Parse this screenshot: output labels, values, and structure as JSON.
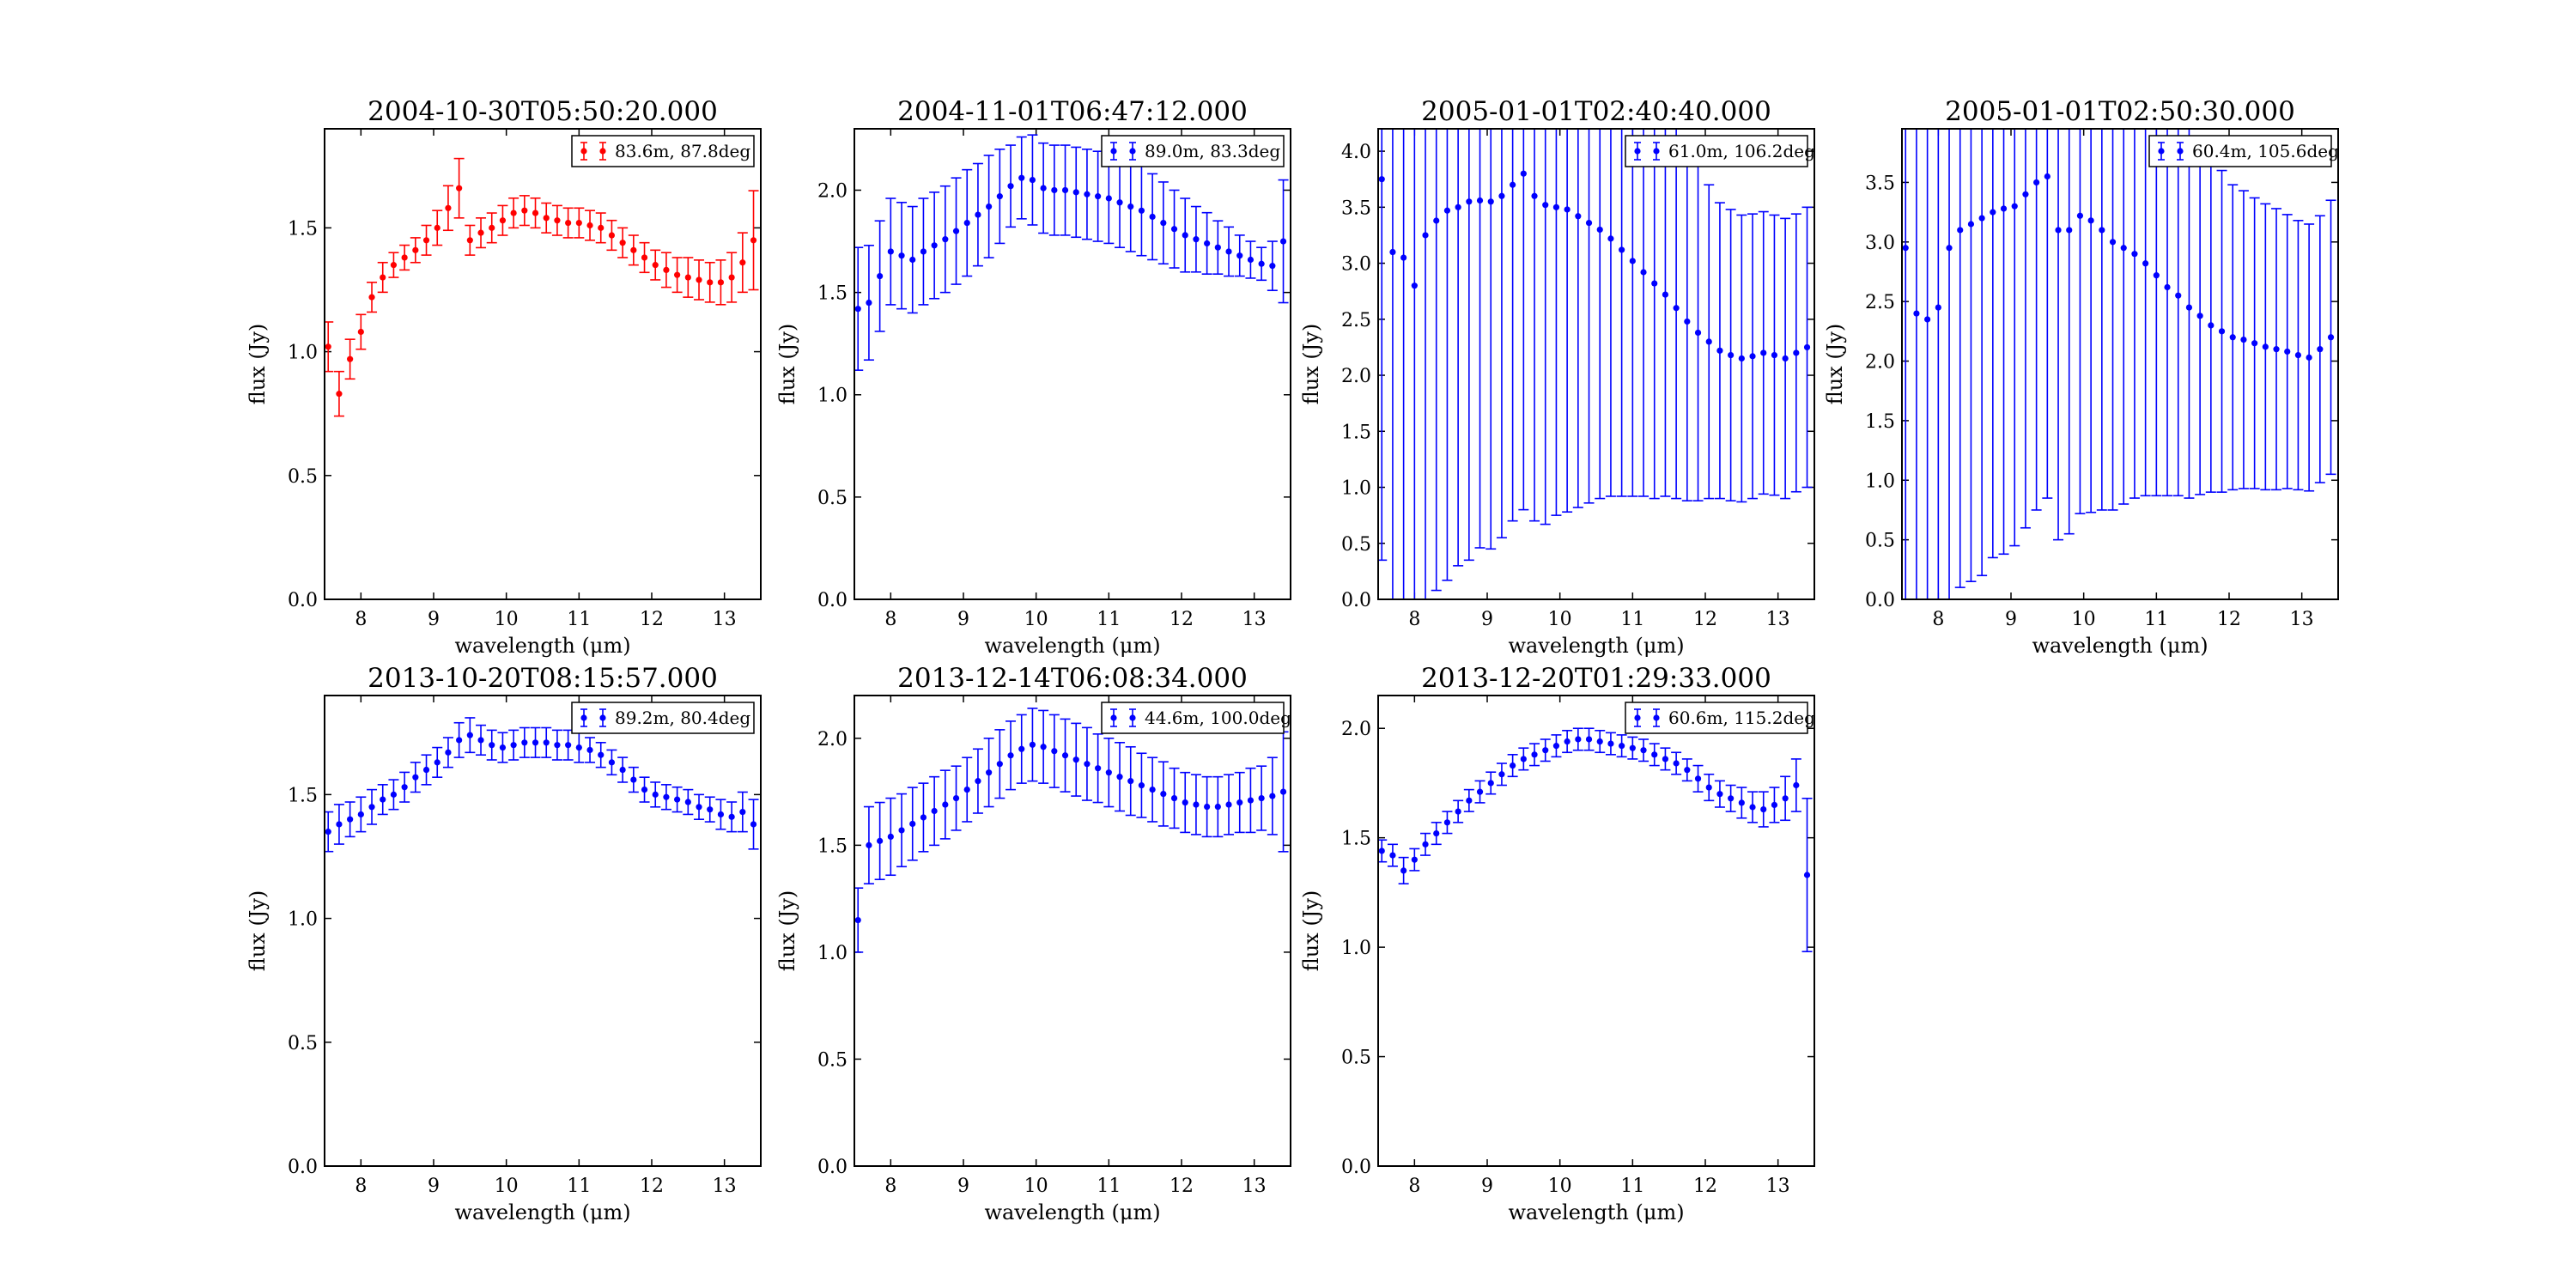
{
  "figure": {
    "background": "#ffffff"
  },
  "chart_data": [
    {
      "type": "scatter",
      "title": "2004-10-30T05:50:20.000",
      "xlabel": "wavelength (μm)",
      "ylabel": "flux (Jy)",
      "xlim": [
        7.5,
        13.5
      ],
      "ylim": [
        0,
        1.9
      ],
      "xticks": [
        8,
        9,
        10,
        11,
        12,
        13
      ],
      "yticks": [
        0.0,
        0.5,
        1.0,
        1.5
      ],
      "color": "#ff0000",
      "grid": false,
      "legend_position": "top-right",
      "series": [
        {
          "name": "83.6m, 87.8deg",
          "x": [
            7.55,
            7.7,
            7.85,
            8.0,
            8.15,
            8.3,
            8.45,
            8.6,
            8.75,
            8.9,
            9.05,
            9.2,
            9.35,
            9.5,
            9.65,
            9.8,
            9.95,
            10.1,
            10.25,
            10.4,
            10.55,
            10.7,
            10.85,
            11.0,
            11.15,
            11.3,
            11.45,
            11.6,
            11.75,
            11.9,
            12.05,
            12.2,
            12.35,
            12.5,
            12.65,
            12.8,
            12.95,
            13.1,
            13.25,
            13.4
          ],
          "y": [
            1.02,
            0.83,
            0.97,
            1.08,
            1.22,
            1.3,
            1.35,
            1.38,
            1.41,
            1.45,
            1.5,
            1.58,
            1.66,
            1.45,
            1.48,
            1.5,
            1.53,
            1.56,
            1.57,
            1.56,
            1.54,
            1.53,
            1.52,
            1.52,
            1.51,
            1.5,
            1.47,
            1.44,
            1.41,
            1.38,
            1.35,
            1.33,
            1.31,
            1.3,
            1.29,
            1.28,
            1.28,
            1.3,
            1.36,
            1.45
          ],
          "err": [
            0.1,
            0.09,
            0.08,
            0.07,
            0.06,
            0.06,
            0.05,
            0.05,
            0.05,
            0.06,
            0.07,
            0.09,
            0.12,
            0.06,
            0.06,
            0.06,
            0.06,
            0.06,
            0.06,
            0.06,
            0.06,
            0.06,
            0.06,
            0.06,
            0.06,
            0.06,
            0.06,
            0.06,
            0.06,
            0.06,
            0.06,
            0.07,
            0.07,
            0.08,
            0.08,
            0.08,
            0.09,
            0.1,
            0.12,
            0.2
          ]
        }
      ]
    },
    {
      "type": "scatter",
      "title": "2004-11-01T06:47:12.000",
      "xlabel": "wavelength (μm)",
      "ylabel": "flux (Jy)",
      "xlim": [
        7.5,
        13.5
      ],
      "ylim": [
        0,
        2.3
      ],
      "xticks": [
        8,
        9,
        10,
        11,
        12,
        13
      ],
      "yticks": [
        0.0,
        0.5,
        1.0,
        1.5,
        2.0
      ],
      "color": "#0000ff",
      "grid": false,
      "legend_position": "top-right",
      "series": [
        {
          "name": "89.0m, 83.3deg",
          "x": [
            7.55,
            7.7,
            7.85,
            8.0,
            8.15,
            8.3,
            8.45,
            8.6,
            8.75,
            8.9,
            9.05,
            9.2,
            9.35,
            9.5,
            9.65,
            9.8,
            9.95,
            10.1,
            10.25,
            10.4,
            10.55,
            10.7,
            10.85,
            11.0,
            11.15,
            11.3,
            11.45,
            11.6,
            11.75,
            11.9,
            12.05,
            12.2,
            12.35,
            12.5,
            12.65,
            12.8,
            12.95,
            13.1,
            13.25,
            13.4
          ],
          "y": [
            1.42,
            1.45,
            1.58,
            1.7,
            1.68,
            1.66,
            1.7,
            1.73,
            1.76,
            1.8,
            1.84,
            1.88,
            1.92,
            1.97,
            2.02,
            2.06,
            2.05,
            2.01,
            2.0,
            2.0,
            1.99,
            1.98,
            1.97,
            1.96,
            1.94,
            1.92,
            1.9,
            1.87,
            1.84,
            1.81,
            1.78,
            1.76,
            1.74,
            1.72,
            1.7,
            1.68,
            1.66,
            1.64,
            1.63,
            1.75
          ],
          "err": [
            0.3,
            0.28,
            0.27,
            0.26,
            0.26,
            0.26,
            0.26,
            0.26,
            0.26,
            0.26,
            0.26,
            0.25,
            0.25,
            0.23,
            0.2,
            0.2,
            0.22,
            0.22,
            0.22,
            0.22,
            0.22,
            0.22,
            0.22,
            0.22,
            0.22,
            0.22,
            0.22,
            0.21,
            0.2,
            0.19,
            0.18,
            0.16,
            0.15,
            0.13,
            0.12,
            0.1,
            0.09,
            0.08,
            0.12,
            0.3
          ]
        }
      ]
    },
    {
      "type": "scatter",
      "title": "2005-01-01T02:40:40.000",
      "xlabel": "wavelength (μm)",
      "ylabel": "flux (Jy)",
      "xlim": [
        7.5,
        13.5
      ],
      "ylim": [
        0,
        4.2
      ],
      "xticks": [
        8,
        9,
        10,
        11,
        12,
        13
      ],
      "yticks": [
        0.0,
        0.5,
        1.0,
        1.5,
        2.0,
        2.5,
        3.0,
        3.5,
        4.0
      ],
      "color": "#0000ff",
      "grid": false,
      "legend_position": "top-right",
      "series": [
        {
          "name": "61.0m, 106.2deg",
          "x": [
            7.55,
            7.7,
            7.85,
            8.0,
            8.15,
            8.3,
            8.45,
            8.6,
            8.75,
            8.9,
            9.05,
            9.2,
            9.35,
            9.5,
            9.65,
            9.8,
            9.95,
            10.1,
            10.25,
            10.4,
            10.55,
            10.7,
            10.85,
            11.0,
            11.15,
            11.3,
            11.45,
            11.6,
            11.75,
            11.9,
            12.05,
            12.2,
            12.35,
            12.5,
            12.65,
            12.8,
            12.95,
            13.1,
            13.25,
            13.4
          ],
          "y": [
            3.75,
            3.1,
            3.05,
            2.8,
            3.25,
            3.38,
            3.47,
            3.5,
            3.55,
            3.56,
            3.55,
            3.6,
            3.7,
            3.8,
            3.6,
            3.52,
            3.5,
            3.48,
            3.42,
            3.36,
            3.3,
            3.22,
            3.12,
            3.02,
            2.92,
            2.82,
            2.72,
            2.6,
            2.48,
            2.38,
            2.3,
            2.22,
            2.18,
            2.15,
            2.17,
            2.2,
            2.18,
            2.15,
            2.2,
            2.25
          ],
          "err": [
            3.4,
            3.4,
            3.3,
            3.2,
            3.3,
            3.3,
            3.3,
            3.2,
            3.2,
            3.1,
            3.1,
            3.05,
            3.0,
            3.0,
            2.9,
            2.85,
            2.75,
            2.7,
            2.6,
            2.5,
            2.4,
            2.3,
            2.2,
            2.1,
            2.0,
            1.92,
            1.8,
            1.7,
            1.6,
            1.5,
            1.4,
            1.32,
            1.3,
            1.28,
            1.27,
            1.26,
            1.25,
            1.25,
            1.24,
            1.25
          ]
        }
      ]
    },
    {
      "type": "scatter",
      "title": "2005-01-01T02:50:30.000",
      "xlabel": "wavelength (μm)",
      "ylabel": "flux (Jy)",
      "xlim": [
        7.5,
        13.5
      ],
      "ylim": [
        0,
        3.95
      ],
      "xticks": [
        8,
        9,
        10,
        11,
        12,
        13
      ],
      "yticks": [
        0.0,
        0.5,
        1.0,
        1.5,
        2.0,
        2.5,
        3.0,
        3.5
      ],
      "color": "#0000ff",
      "grid": false,
      "legend_position": "top-right",
      "series": [
        {
          "name": "60.4m, 105.6deg",
          "x": [
            7.55,
            7.7,
            7.85,
            8.0,
            8.15,
            8.3,
            8.45,
            8.6,
            8.75,
            8.9,
            9.05,
            9.2,
            9.35,
            9.5,
            9.65,
            9.8,
            9.95,
            10.1,
            10.25,
            10.4,
            10.55,
            10.7,
            10.85,
            11.0,
            11.15,
            11.3,
            11.45,
            11.6,
            11.75,
            11.9,
            12.05,
            12.2,
            12.35,
            12.5,
            12.65,
            12.8,
            12.95,
            13.1,
            13.25,
            13.4
          ],
          "y": [
            2.95,
            2.4,
            2.35,
            2.45,
            2.95,
            3.1,
            3.15,
            3.2,
            3.25,
            3.28,
            3.3,
            3.4,
            3.5,
            3.55,
            3.1,
            3.1,
            3.22,
            3.18,
            3.1,
            3.0,
            2.95,
            2.9,
            2.82,
            2.72,
            2.62,
            2.55,
            2.45,
            2.38,
            2.3,
            2.25,
            2.2,
            2.18,
            2.15,
            2.12,
            2.1,
            2.08,
            2.05,
            2.03,
            2.1,
            2.2
          ],
          "err": [
            3.3,
            3.2,
            3.1,
            3.05,
            3.0,
            3.0,
            3.0,
            3.0,
            2.9,
            2.9,
            2.85,
            2.8,
            2.75,
            2.7,
            2.6,
            2.55,
            2.5,
            2.45,
            2.35,
            2.25,
            2.15,
            2.05,
            1.95,
            1.85,
            1.75,
            1.68,
            1.6,
            1.5,
            1.4,
            1.35,
            1.28,
            1.25,
            1.22,
            1.2,
            1.18,
            1.15,
            1.13,
            1.12,
            1.12,
            1.15
          ]
        }
      ]
    },
    {
      "type": "scatter",
      "title": "2013-10-20T08:15:57.000",
      "xlabel": "wavelength (μm)",
      "ylabel": "flux (Jy)",
      "xlim": [
        7.5,
        13.5
      ],
      "ylim": [
        0,
        1.9
      ],
      "xticks": [
        8,
        9,
        10,
        11,
        12,
        13
      ],
      "yticks": [
        0.0,
        0.5,
        1.0,
        1.5
      ],
      "color": "#0000ff",
      "grid": false,
      "legend_position": "top-right",
      "series": [
        {
          "name": "89.2m, 80.4deg",
          "x": [
            7.55,
            7.7,
            7.85,
            8.0,
            8.15,
            8.3,
            8.45,
            8.6,
            8.75,
            8.9,
            9.05,
            9.2,
            9.35,
            9.5,
            9.65,
            9.8,
            9.95,
            10.1,
            10.25,
            10.4,
            10.55,
            10.7,
            10.85,
            11.0,
            11.15,
            11.3,
            11.45,
            11.6,
            11.75,
            11.9,
            12.05,
            12.2,
            12.35,
            12.5,
            12.65,
            12.8,
            12.95,
            13.1,
            13.25,
            13.4
          ],
          "y": [
            1.35,
            1.38,
            1.4,
            1.42,
            1.45,
            1.48,
            1.5,
            1.53,
            1.57,
            1.6,
            1.63,
            1.67,
            1.72,
            1.74,
            1.72,
            1.7,
            1.69,
            1.7,
            1.71,
            1.71,
            1.71,
            1.7,
            1.7,
            1.69,
            1.68,
            1.66,
            1.63,
            1.6,
            1.56,
            1.52,
            1.5,
            1.49,
            1.48,
            1.47,
            1.45,
            1.44,
            1.42,
            1.41,
            1.43,
            1.38
          ],
          "err": [
            0.08,
            0.08,
            0.07,
            0.07,
            0.07,
            0.06,
            0.06,
            0.06,
            0.06,
            0.06,
            0.06,
            0.06,
            0.07,
            0.07,
            0.06,
            0.06,
            0.06,
            0.06,
            0.06,
            0.06,
            0.06,
            0.06,
            0.06,
            0.06,
            0.05,
            0.05,
            0.05,
            0.05,
            0.05,
            0.05,
            0.05,
            0.05,
            0.05,
            0.05,
            0.05,
            0.05,
            0.06,
            0.06,
            0.08,
            0.1
          ]
        }
      ]
    },
    {
      "type": "scatter",
      "title": "2013-12-14T06:08:34.000",
      "xlabel": "wavelength (μm)",
      "ylabel": "flux (Jy)",
      "xlim": [
        7.5,
        13.5
      ],
      "ylim": [
        0,
        2.2
      ],
      "xticks": [
        8,
        9,
        10,
        11,
        12,
        13
      ],
      "yticks": [
        0.0,
        0.5,
        1.0,
        1.5,
        2.0
      ],
      "color": "#0000ff",
      "grid": false,
      "legend_position": "top-right",
      "series": [
        {
          "name": "44.6m, 100.0deg",
          "x": [
            7.55,
            7.7,
            7.85,
            8.0,
            8.15,
            8.3,
            8.45,
            8.6,
            8.75,
            8.9,
            9.05,
            9.2,
            9.35,
            9.5,
            9.65,
            9.8,
            9.95,
            10.1,
            10.25,
            10.4,
            10.55,
            10.7,
            10.85,
            11.0,
            11.15,
            11.3,
            11.45,
            11.6,
            11.75,
            11.9,
            12.05,
            12.2,
            12.35,
            12.5,
            12.65,
            12.8,
            12.95,
            13.1,
            13.25,
            13.4
          ],
          "y": [
            1.15,
            1.5,
            1.52,
            1.54,
            1.57,
            1.6,
            1.63,
            1.66,
            1.69,
            1.72,
            1.76,
            1.8,
            1.84,
            1.88,
            1.92,
            1.95,
            1.97,
            1.96,
            1.94,
            1.92,
            1.9,
            1.88,
            1.86,
            1.84,
            1.82,
            1.8,
            1.78,
            1.76,
            1.74,
            1.72,
            1.7,
            1.69,
            1.68,
            1.68,
            1.69,
            1.7,
            1.71,
            1.72,
            1.73,
            1.75
          ],
          "err": [
            0.15,
            0.18,
            0.18,
            0.18,
            0.17,
            0.17,
            0.16,
            0.16,
            0.16,
            0.15,
            0.15,
            0.15,
            0.16,
            0.16,
            0.16,
            0.16,
            0.17,
            0.17,
            0.17,
            0.17,
            0.17,
            0.17,
            0.16,
            0.16,
            0.16,
            0.16,
            0.15,
            0.15,
            0.15,
            0.14,
            0.14,
            0.14,
            0.14,
            0.14,
            0.14,
            0.14,
            0.15,
            0.15,
            0.18,
            0.28
          ]
        }
      ]
    },
    {
      "type": "scatter",
      "title": "2013-12-20T01:29:33.000",
      "xlabel": "wavelength (μm)",
      "ylabel": "flux (Jy)",
      "xlim": [
        7.5,
        13.5
      ],
      "ylim": [
        0,
        2.15
      ],
      "xticks": [
        8,
        9,
        10,
        11,
        12,
        13
      ],
      "yticks": [
        0.0,
        0.5,
        1.0,
        1.5,
        2.0
      ],
      "color": "#0000ff",
      "grid": false,
      "legend_position": "top-right",
      "series": [
        {
          "name": "60.6m, 115.2deg",
          "x": [
            7.55,
            7.7,
            7.85,
            8.0,
            8.15,
            8.3,
            8.45,
            8.6,
            8.75,
            8.9,
            9.05,
            9.2,
            9.35,
            9.5,
            9.65,
            9.8,
            9.95,
            10.1,
            10.25,
            10.4,
            10.55,
            10.7,
            10.85,
            11.0,
            11.15,
            11.3,
            11.45,
            11.6,
            11.75,
            11.9,
            12.05,
            12.2,
            12.35,
            12.5,
            12.65,
            12.8,
            12.95,
            13.1,
            13.25,
            13.4
          ],
          "y": [
            1.44,
            1.42,
            1.35,
            1.4,
            1.47,
            1.52,
            1.57,
            1.62,
            1.67,
            1.71,
            1.75,
            1.79,
            1.83,
            1.86,
            1.88,
            1.9,
            1.92,
            1.94,
            1.95,
            1.95,
            1.94,
            1.93,
            1.92,
            1.91,
            1.9,
            1.88,
            1.86,
            1.84,
            1.81,
            1.77,
            1.73,
            1.7,
            1.68,
            1.66,
            1.64,
            1.63,
            1.65,
            1.68,
            1.74,
            1.33
          ],
          "err": [
            0.05,
            0.05,
            0.06,
            0.05,
            0.05,
            0.05,
            0.05,
            0.05,
            0.05,
            0.05,
            0.05,
            0.05,
            0.05,
            0.05,
            0.05,
            0.05,
            0.05,
            0.05,
            0.05,
            0.05,
            0.05,
            0.05,
            0.05,
            0.05,
            0.05,
            0.05,
            0.05,
            0.05,
            0.05,
            0.06,
            0.06,
            0.06,
            0.06,
            0.07,
            0.07,
            0.08,
            0.08,
            0.1,
            0.12,
            0.35
          ]
        }
      ]
    }
  ]
}
